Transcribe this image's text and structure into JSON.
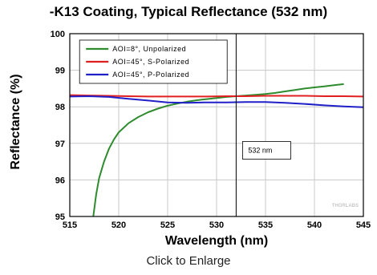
{
  "chart_data": {
    "type": "line",
    "title": "-K13 Coating, Typical Reflectance (532 nm)",
    "xlabel": "Wavelength (nm)",
    "ylabel": "Reflectance (%)",
    "xlim": [
      515,
      545
    ],
    "ylim": [
      95,
      100
    ],
    "xticks": [
      515,
      520,
      525,
      530,
      535,
      540,
      545
    ],
    "yticks": [
      95,
      96,
      97,
      98,
      99,
      100
    ],
    "grid": true,
    "legend_position": "top-left",
    "series": [
      {
        "name": "AOI=8°, Unpolarized",
        "color": "#2e8b2e",
        "x": [
          517.4,
          517.7,
          518.0,
          518.5,
          519.0,
          519.5,
          520.0,
          521.0,
          522.0,
          523.0,
          524.0,
          525.0,
          526.0,
          527.0,
          528.0,
          529.0,
          530.0,
          531.0,
          532.0,
          533.0,
          534.0,
          535.0,
          536.0,
          537.0,
          538.0,
          539.0,
          540.0,
          541.0,
          542.0,
          543.0
        ],
        "y": [
          95.0,
          95.6,
          96.05,
          96.5,
          96.85,
          97.1,
          97.3,
          97.55,
          97.72,
          97.85,
          97.95,
          98.03,
          98.09,
          98.14,
          98.18,
          98.21,
          98.24,
          98.27,
          98.29,
          98.31,
          98.33,
          98.35,
          98.38,
          98.42,
          98.46,
          98.5,
          98.53,
          98.56,
          98.59,
          98.62
        ]
      },
      {
        "name": "AOI=45°, S-Polarized",
        "color": "#e02020",
        "x": [
          515,
          517,
          519,
          521,
          523,
          525,
          527,
          529,
          531,
          533,
          535,
          537,
          539,
          541,
          543,
          545
        ],
        "y": [
          98.32,
          98.31,
          98.3,
          98.29,
          98.28,
          98.28,
          98.28,
          98.28,
          98.29,
          98.29,
          98.3,
          98.3,
          98.3,
          98.29,
          98.29,
          98.28
        ]
      },
      {
        "name": "AOI=45°, P-Polarized",
        "color": "#2020c8",
        "x": [
          515,
          517,
          519,
          521,
          523,
          525,
          527,
          529,
          531,
          533,
          535,
          537,
          539,
          541,
          543,
          545
        ],
        "y": [
          98.28,
          98.29,
          98.27,
          98.22,
          98.17,
          98.12,
          98.11,
          98.12,
          98.12,
          98.13,
          98.13,
          98.11,
          98.08,
          98.04,
          98.01,
          97.99
        ]
      }
    ],
    "annotations": [
      {
        "type": "vline",
        "x": 532,
        "label": "532 nm"
      }
    ],
    "watermark": "THORLABS"
  },
  "caption": "Click to Enlarge"
}
